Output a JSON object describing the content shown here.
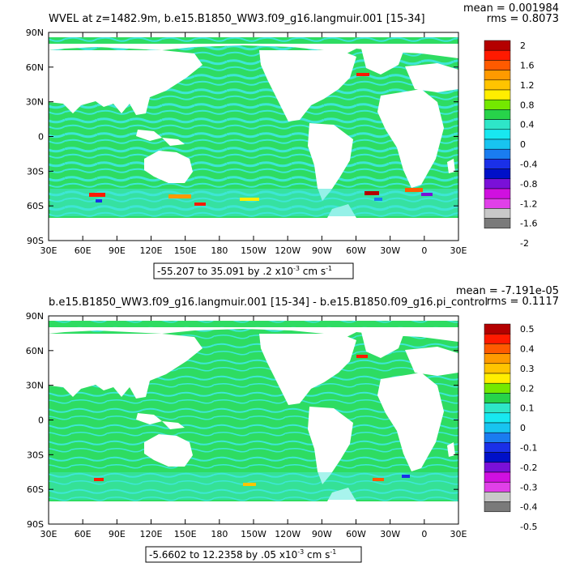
{
  "panels": [
    {
      "title": "WVEL at z=1482.9m, b.e15.B1850_WW3.f09_g16.langmuir.001 [15-34]",
      "stats_mean": "mean = 0.001984",
      "stats_rms": "rms = 0.8073",
      "lat_labels": [
        "90N",
        "60N",
        "30N",
        "0",
        "30S",
        "60S",
        "90S"
      ],
      "lon_labels": [
        "30E",
        "60E",
        "90E",
        "120E",
        "150E",
        "180",
        "150W",
        "120W",
        "90W",
        "60W",
        "30W",
        "0",
        "30E"
      ],
      "range_note": "-55.207 to 35.091 by .2 x10",
      "range_exp": "-3",
      "range_units": " cm s",
      "range_units_exp": "-1",
      "colorbar_labels": [
        "2",
        "1.6",
        "1.2",
        "0.8",
        "0.4",
        "0",
        "-0.4",
        "-0.8",
        "-1.2",
        "-1.6",
        "-2"
      ]
    },
    {
      "title": "b.e15.B1850_WW3.f09_g16.langmuir.001 [15-34] - b.e15.B1850.f09_g16.pi_control",
      "stats_mean": "mean = -7.191e-05",
      "stats_rms": "rms = 0.1117",
      "lat_labels": [
        "90N",
        "60N",
        "30N",
        "0",
        "30S",
        "60S",
        "90S"
      ],
      "lon_labels": [
        "30E",
        "60E",
        "90E",
        "120E",
        "150E",
        "180",
        "150W",
        "120W",
        "90W",
        "60W",
        "30W",
        "0",
        "30E"
      ],
      "range_note": "-5.6602 to 12.2358 by .05 x10",
      "range_exp": "-3",
      "range_units": " cm s",
      "range_units_exp": "-1",
      "colorbar_labels": [
        "0.5",
        "0.4",
        "0.3",
        "0.2",
        "0.1",
        "0",
        "-0.1",
        "-0.2",
        "-0.3",
        "-0.4",
        "-0.5"
      ]
    }
  ],
  "colors": {
    "ocean_main": "#2edc62",
    "ocean_light": "#3ee6d6",
    "land": "#ffffff",
    "frame": "#000000",
    "colorbar": [
      "#b40000",
      "#ff1a00",
      "#ff5a00",
      "#ff9a00",
      "#ffc400",
      "#ffee00",
      "#74e800",
      "#27d34a",
      "#2ee6c8",
      "#18e8f0",
      "#18c4f0",
      "#1a7cf0",
      "#1a30e8",
      "#0010c8",
      "#7a10d8",
      "#d010e0",
      "#e040e8",
      "#c8c8c8",
      "#7a7a7a"
    ]
  }
}
